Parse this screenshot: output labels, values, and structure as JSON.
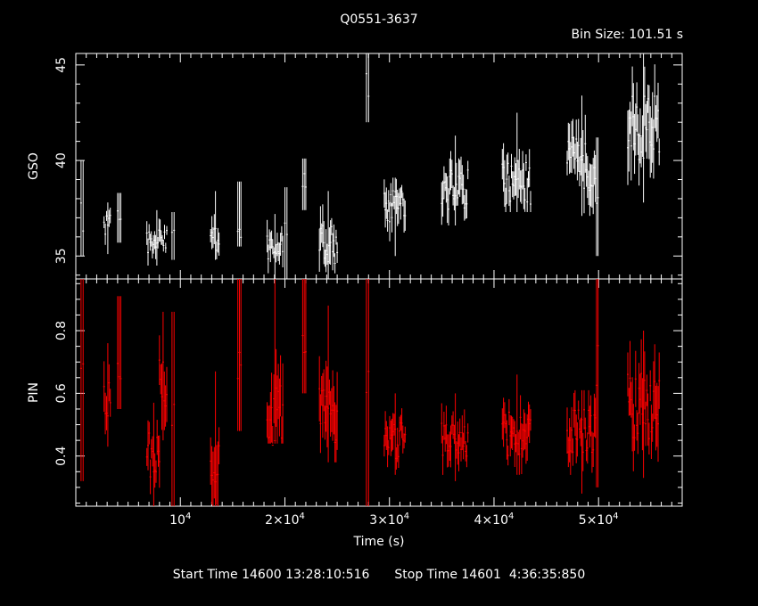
{
  "title": "Q0551-3637",
  "bin_size": "Bin Size: 101.51 s",
  "footer": {
    "start": "Start Time 14600 13:28:10:516",
    "stop": "Stop Time 14601  4:36:35:850"
  },
  "colors": {
    "background": "#000000",
    "axes": "#ffffff",
    "gso": "#ffffff",
    "pin": "#ff0000"
  },
  "chart_data": [
    {
      "type": "line",
      "name": "GSO",
      "ylabel": "GSO",
      "ylim": [
        33.8,
        45.6
      ],
      "xlim": [
        0,
        58000
      ],
      "yticks_major": [
        35,
        40,
        45
      ],
      "color": "#ffffff",
      "segments": [
        {
          "x0": 500,
          "x1": 700,
          "ymin": 35.0,
          "ymax": 40.0,
          "center": 37.0
        },
        {
          "x0": 2700,
          "x1": 3300,
          "ymin": 35.1,
          "ymax": 37.8,
          "center": 36.6
        },
        {
          "x0": 4000,
          "x1": 4300,
          "ymin": 35.7,
          "ymax": 38.3,
          "center": 36.8
        },
        {
          "x0": 6800,
          "x1": 8700,
          "ymin": 34.5,
          "ymax": 37.4,
          "center": 35.8
        },
        {
          "x0": 9200,
          "x1": 9400,
          "ymin": 34.8,
          "ymax": 37.3,
          "center": 36.0
        },
        {
          "x0": 12900,
          "x1": 13700,
          "ymin": 34.8,
          "ymax": 38.4,
          "center": 35.7
        },
        {
          "x0": 15500,
          "x1": 15800,
          "ymin": 35.5,
          "ymax": 38.9,
          "center": 36.4
        },
        {
          "x0": 18300,
          "x1": 19800,
          "ymin": 33.8,
          "ymax": 37.2,
          "center": 35.4
        },
        {
          "x0": 20000,
          "x1": 20200,
          "ymin": 33.8,
          "ymax": 38.6,
          "center": 36.5
        },
        {
          "x0": 21700,
          "x1": 22000,
          "ymin": 37.4,
          "ymax": 40.1,
          "center": 38.8
        },
        {
          "x0": 23300,
          "x1": 25000,
          "ymin": 33.8,
          "ymax": 38.4,
          "center": 35.6
        },
        {
          "x0": 27800,
          "x1": 28000,
          "ymin": 42.0,
          "ymax": 45.6,
          "center": 44.0
        },
        {
          "x0": 29500,
          "x1": 31500,
          "ymin": 35.0,
          "ymax": 39.1,
          "center": 37.6
        },
        {
          "x0": 35000,
          "x1": 37500,
          "ymin": 36.6,
          "ymax": 41.3,
          "center": 38.5
        },
        {
          "x0": 40800,
          "x1": 43500,
          "ymin": 37.3,
          "ymax": 42.5,
          "center": 38.8
        },
        {
          "x0": 47000,
          "x1": 49700,
          "ymin": 37.1,
          "ymax": 43.4,
          "center": 39.8
        },
        {
          "x0": 49800,
          "x1": 49950,
          "ymin": 35.0,
          "ymax": 41.2,
          "center": 38.0
        },
        {
          "x0": 52800,
          "x1": 55800,
          "ymin": 37.8,
          "ymax": 45.6,
          "center": 41.8
        }
      ]
    },
    {
      "type": "line",
      "name": "PIN",
      "xlabel": "Time (s)",
      "ylabel": "PIN",
      "ylim": [
        0.24,
        0.965
      ],
      "xlim": [
        0,
        58000
      ],
      "yticks_major": [
        0.4,
        0.6,
        0.8
      ],
      "xticks_major": [
        "10^4",
        "2×10^4",
        "3×10^4",
        "4×10^4",
        "5×10^4"
      ],
      "xticks_values": [
        10000,
        20000,
        30000,
        40000,
        50000
      ],
      "color": "#ff0000",
      "segments": [
        {
          "x0": 500,
          "x1": 700,
          "ymin": 0.32,
          "ymax": 0.965,
          "center": 0.6
        },
        {
          "x0": 2700,
          "x1": 3300,
          "ymin": 0.43,
          "ymax": 0.76,
          "center": 0.58
        },
        {
          "x0": 4000,
          "x1": 4300,
          "ymin": 0.55,
          "ymax": 0.91,
          "center": 0.7
        },
        {
          "x0": 6800,
          "x1": 8000,
          "ymin": 0.24,
          "ymax": 0.57,
          "center": 0.4
        },
        {
          "x0": 8000,
          "x1": 8700,
          "ymin": 0.45,
          "ymax": 0.86,
          "center": 0.65
        },
        {
          "x0": 9200,
          "x1": 9400,
          "ymin": 0.24,
          "ymax": 0.86,
          "center": 0.5
        },
        {
          "x0": 12900,
          "x1": 13700,
          "ymin": 0.24,
          "ymax": 0.67,
          "center": 0.38
        },
        {
          "x0": 15500,
          "x1": 15800,
          "ymin": 0.48,
          "ymax": 0.965,
          "center": 0.7
        },
        {
          "x0": 18300,
          "x1": 19800,
          "ymin": 0.44,
          "ymax": 0.965,
          "center": 0.55
        },
        {
          "x0": 21700,
          "x1": 22000,
          "ymin": 0.6,
          "ymax": 0.965,
          "center": 0.72
        },
        {
          "x0": 23300,
          "x1": 25000,
          "ymin": 0.38,
          "ymax": 0.88,
          "center": 0.52
        },
        {
          "x0": 27800,
          "x1": 28000,
          "ymin": 0.24,
          "ymax": 0.965,
          "center": 0.55
        },
        {
          "x0": 29500,
          "x1": 31500,
          "ymin": 0.34,
          "ymax": 0.6,
          "center": 0.45
        },
        {
          "x0": 35000,
          "x1": 37500,
          "ymin": 0.32,
          "ymax": 0.6,
          "center": 0.45
        },
        {
          "x0": 40800,
          "x1": 43500,
          "ymin": 0.34,
          "ymax": 0.66,
          "center": 0.47
        },
        {
          "x0": 47000,
          "x1": 49700,
          "ymin": 0.28,
          "ymax": 0.61,
          "center": 0.48
        },
        {
          "x0": 49800,
          "x1": 49950,
          "ymin": 0.3,
          "ymax": 0.965,
          "center": 0.65
        },
        {
          "x0": 52800,
          "x1": 55800,
          "ymin": 0.33,
          "ymax": 0.8,
          "center": 0.56
        }
      ]
    }
  ]
}
